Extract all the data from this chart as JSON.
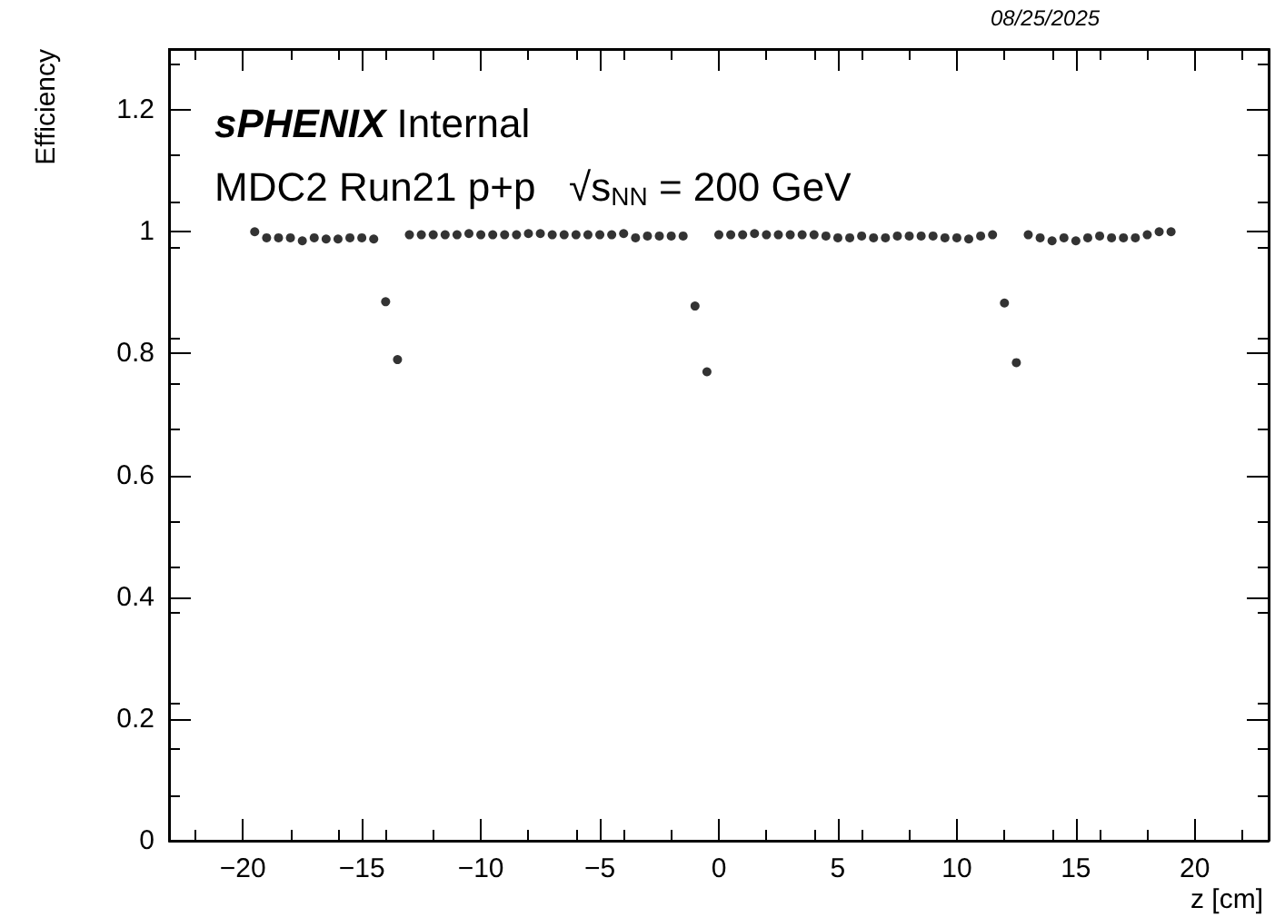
{
  "chart_data": {
    "type": "scatter",
    "xlabel": "z [cm]",
    "ylabel": "Efficiency",
    "annotations": [
      "08/25/2025",
      "sPHENIX Internal",
      "MDC2 Run21 p+p   √s$_{NN}$ = 200 GeV"
    ],
    "x": [
      -19.5,
      -19,
      -18.5,
      -18,
      -17.5,
      -17,
      -16.5,
      -16,
      -15.5,
      -15,
      -14.5,
      -14,
      -13.5,
      -13,
      -12.5,
      -12,
      -11.5,
      -11,
      -10.5,
      -10,
      -9.5,
      -9,
      -8.5,
      -8,
      -7.5,
      -7,
      -6.5,
      -6,
      -5.5,
      -5,
      -4.5,
      -4,
      -3.5,
      -3,
      -2.5,
      -2,
      -1.5,
      -1,
      -0.5,
      0,
      0.5,
      1,
      1.5,
      2,
      2.5,
      3,
      3.5,
      4,
      4.5,
      5,
      5.5,
      6,
      6.5,
      7,
      7.5,
      8,
      8.5,
      9,
      9.5,
      10,
      10.5,
      11,
      11.5,
      12,
      12.5,
      13,
      13.5,
      14,
      14.5,
      15,
      15.5,
      16,
      16.5,
      17,
      17.5,
      18,
      18.5,
      19
    ],
    "values": [
      1.0,
      0.99,
      0.99,
      0.99,
      0.985,
      0.99,
      0.988,
      0.988,
      0.99,
      0.99,
      0.988,
      0.885,
      0.79,
      0.995,
      0.995,
      0.995,
      0.995,
      0.995,
      0.997,
      0.995,
      0.995,
      0.995,
      0.995,
      0.997,
      0.997,
      0.995,
      0.995,
      0.995,
      0.995,
      0.995,
      0.995,
      0.997,
      0.99,
      0.993,
      0.993,
      0.993,
      0.993,
      0.878,
      0.77,
      0.995,
      0.995,
      0.995,
      0.997,
      0.995,
      0.995,
      0.995,
      0.995,
      0.995,
      0.993,
      0.99,
      0.99,
      0.993,
      0.99,
      0.99,
      0.993,
      0.993,
      0.993,
      0.993,
      0.99,
      0.99,
      0.988,
      0.993,
      0.995,
      0.883,
      0.785,
      0.995,
      0.99,
      0.985,
      0.99,
      0.985,
      0.99,
      0.993,
      0.99,
      0.99,
      0.99,
      0.995,
      1.0,
      1.0
    ],
    "color": "#000000",
    "marker": "circle",
    "grid": false,
    "xlim": [
      -23.1,
      23.1
    ],
    "xticks": [
      -20,
      -15,
      -10,
      -5,
      0,
      5,
      10,
      15,
      20
    ],
    "ylim": [
      0,
      1.3
    ],
    "yticks": [
      0,
      0.2,
      0.4,
      0.6,
      0.8,
      1,
      1.2
    ]
  }
}
